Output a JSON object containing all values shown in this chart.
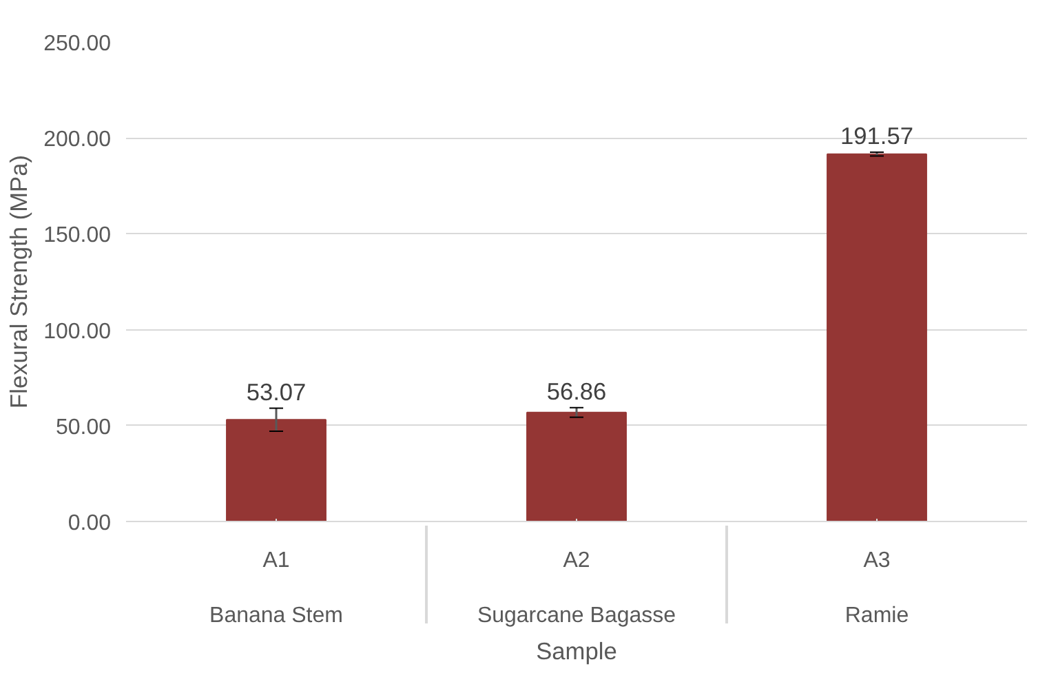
{
  "chart_data": {
    "type": "bar",
    "ylabel": "Flexural Strength (MPa)",
    "xlabel": "Sample",
    "categories": [
      "A1\nBanana Stem",
      "A2\nSugarcane Bagasse",
      "A3\nRamie"
    ],
    "values": [
      53.07,
      56.86,
      191.57
    ],
    "color": "#943634",
    "errors": [
      6,
      2.5,
      1
    ],
    "data_labels": true,
    "ylim": [
      0,
      250
    ],
    "yticks": [
      {
        "value": 0,
        "label": "0.00"
      },
      {
        "value": 50,
        "label": "50.00"
      },
      {
        "value": 100,
        "label": "100.00"
      },
      {
        "value": 150,
        "label": "150.00"
      },
      {
        "value": 200,
        "label": "200.00"
      },
      {
        "value": 250,
        "label": "250.00"
      }
    ],
    "grid": "y"
  }
}
